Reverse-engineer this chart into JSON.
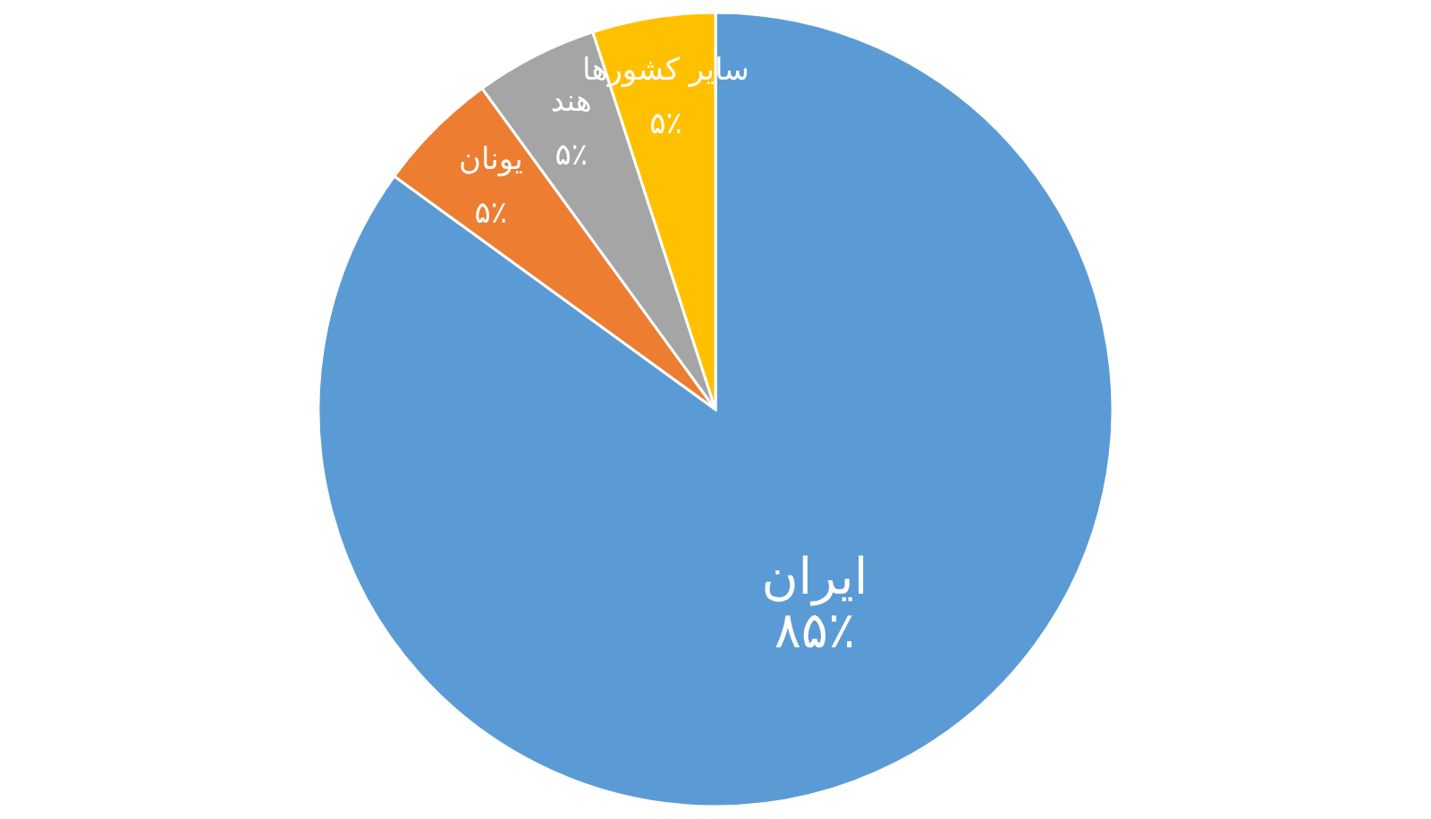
{
  "chart_data": {
    "type": "pie",
    "categories": [
      "ایران",
      "یونان",
      "هند",
      "سایر کشورها"
    ],
    "values": [
      85,
      5,
      5,
      5
    ],
    "value_labels": [
      "۸۵٪",
      "۵٪",
      "۵٪",
      "۵٪"
    ],
    "colors": [
      "#5b9bd5",
      "#ed7d31",
      "#a5a5a5",
      "#ffc000"
    ]
  }
}
